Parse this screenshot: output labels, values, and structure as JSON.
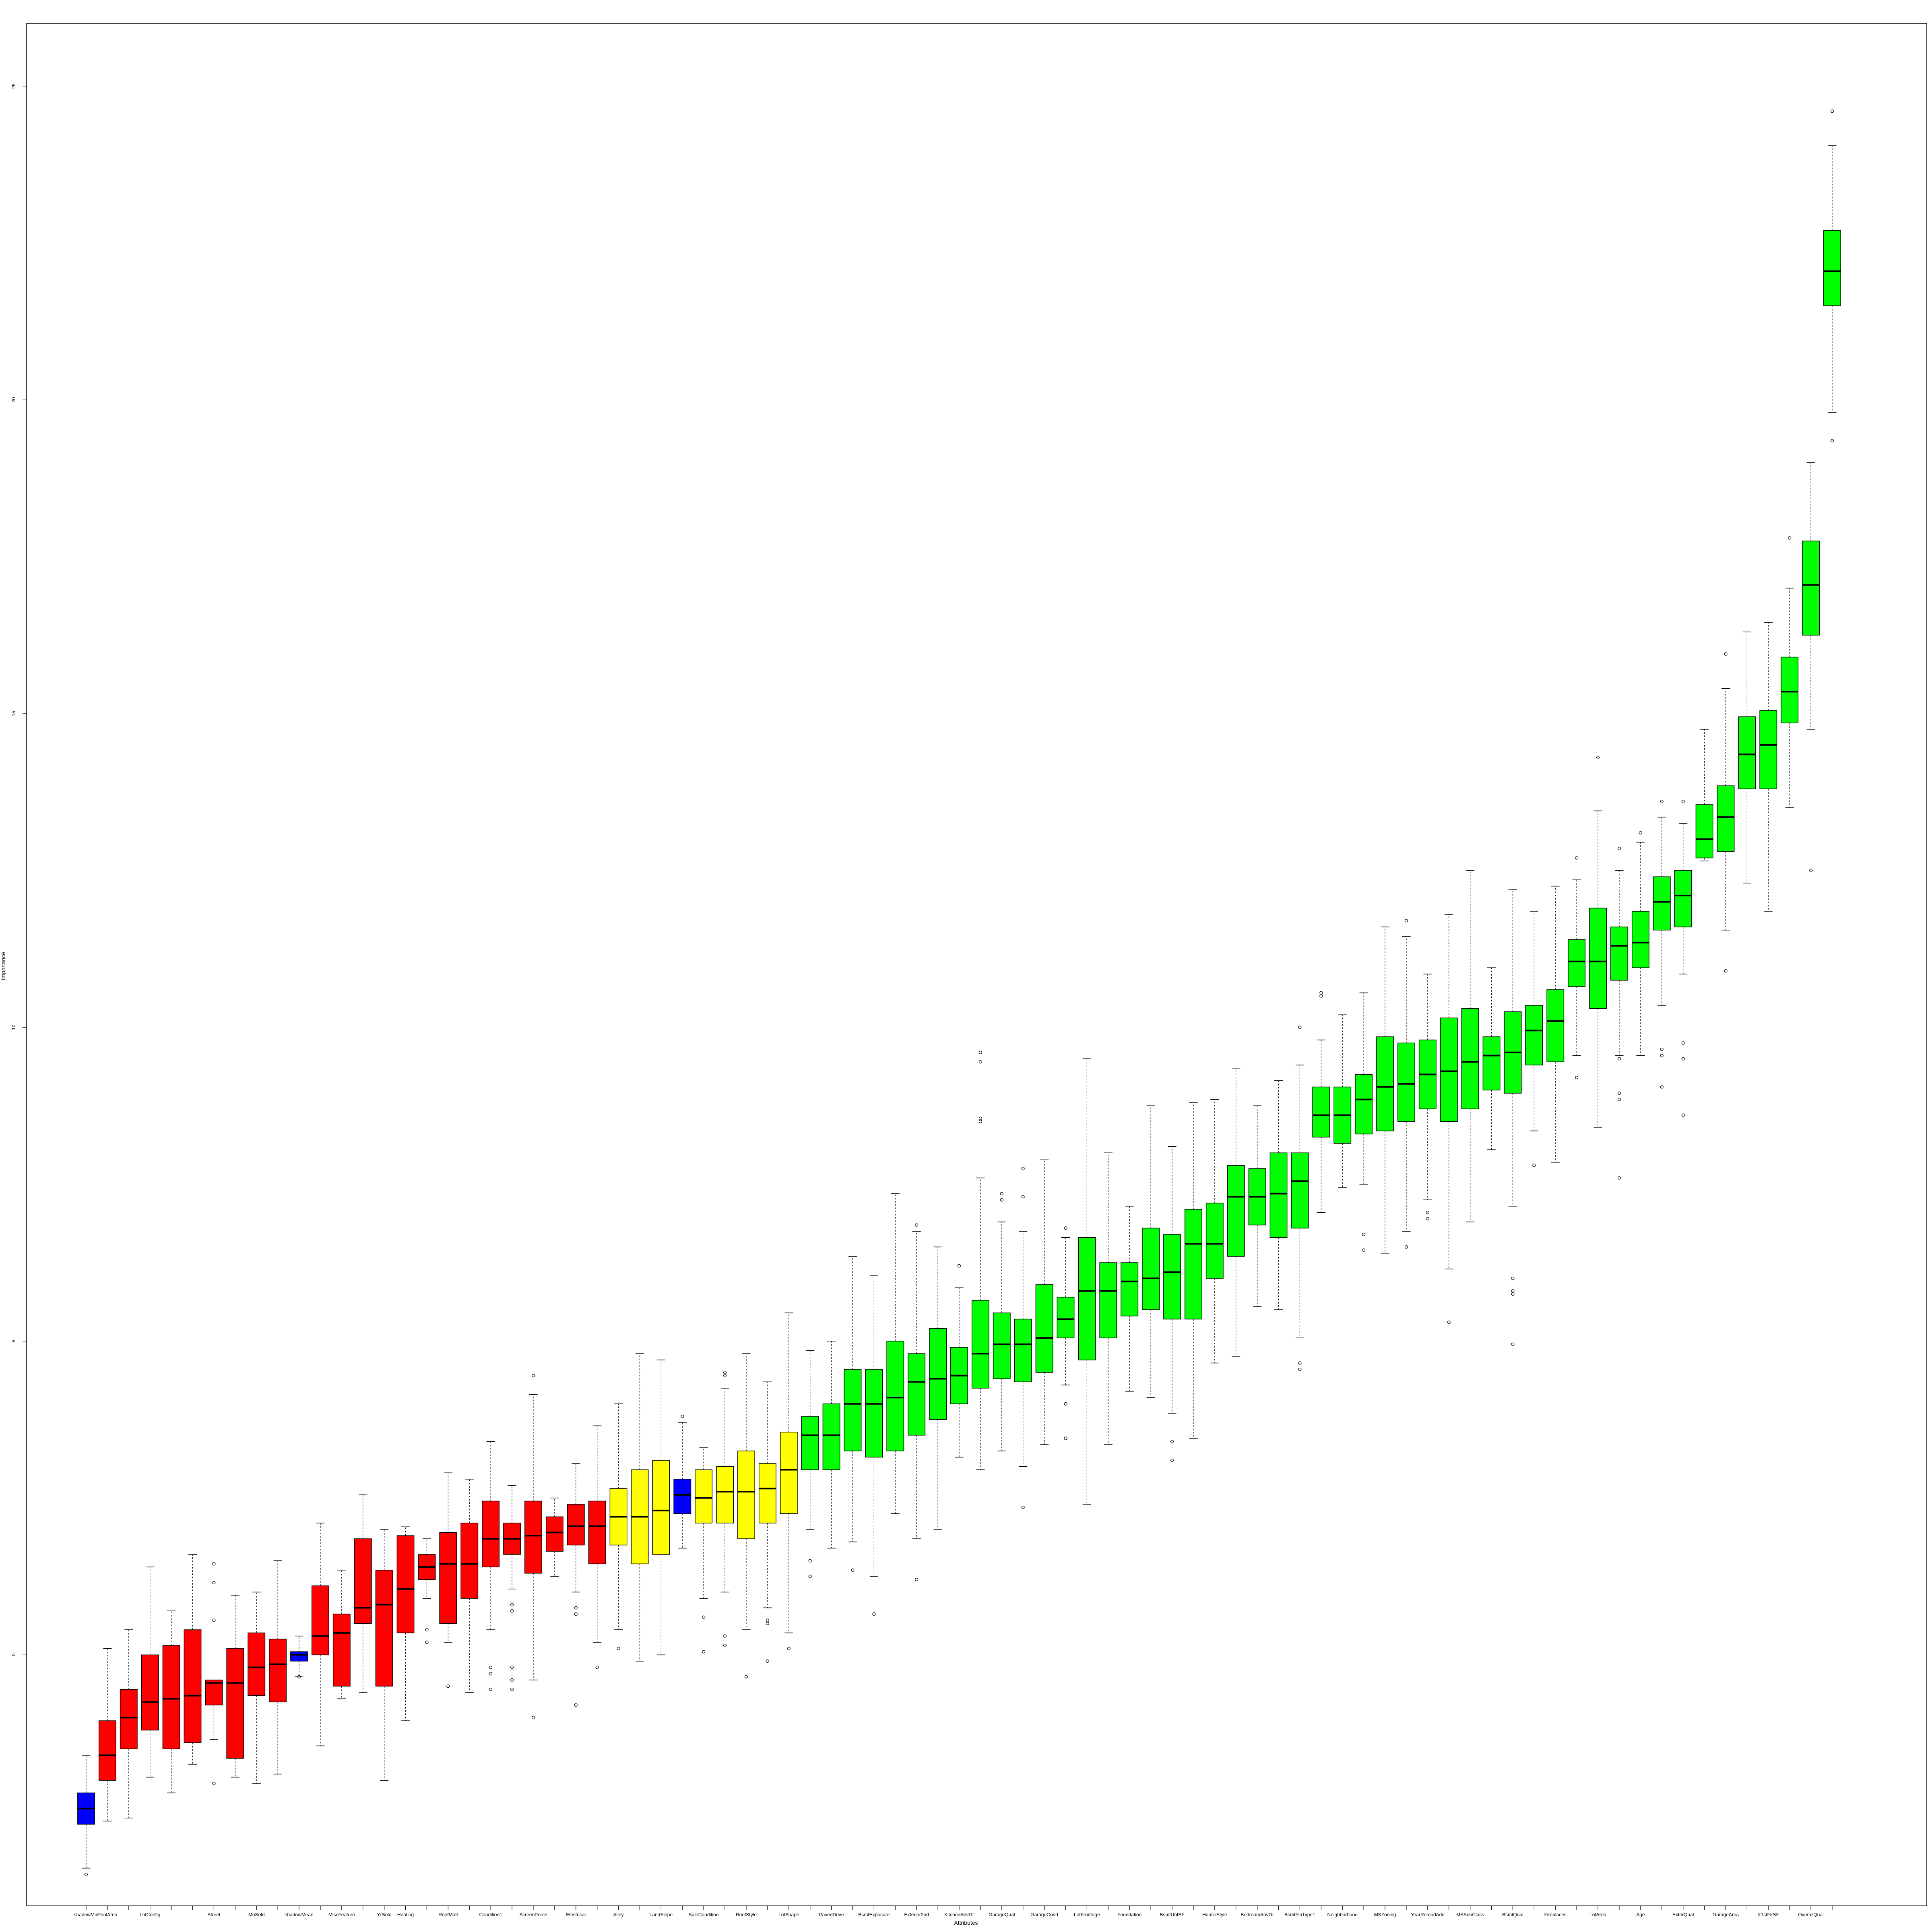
{
  "chart_data": {
    "type": "box",
    "xlabel": "Attributes",
    "ylabel": "Importance",
    "ylim": [
      -4,
      26
    ],
    "yticks": [
      0,
      5,
      10,
      15,
      20,
      25
    ],
    "grid": false,
    "legend": "none",
    "colors": {
      "rejected": "#ff0000",
      "tentative": "#ffff00",
      "confirmed": "#00ff00",
      "shadow": "#0000ff"
    },
    "boxes": [
      {
        "name": "shadowMin",
        "status": "shadow",
        "min": -3.4,
        "q1": -2.7,
        "med": -2.45,
        "q3": -2.2,
        "max": -1.6,
        "out": [
          -3.5
        ]
      },
      {
        "name": "PoolArea",
        "status": "rejected",
        "min": -2.65,
        "q1": -2.0,
        "med": -1.6,
        "q3": -1.05,
        "max": 0.1,
        "out": []
      },
      {
        "name": "",
        "status": "rejected",
        "min": -2.6,
        "q1": -1.5,
        "med": -1.0,
        "q3": -0.55,
        "max": 0.4,
        "out": []
      },
      {
        "name": "LotConfig",
        "status": "rejected",
        "min": -1.95,
        "q1": -1.2,
        "med": -0.75,
        "q3": 0.0,
        "max": 1.4,
        "out": []
      },
      {
        "name": "",
        "status": "rejected",
        "min": -2.2,
        "q1": -1.5,
        "med": -0.7,
        "q3": 0.15,
        "max": 0.7,
        "out": []
      },
      {
        "name": "",
        "status": "rejected",
        "min": -1.75,
        "q1": -1.4,
        "med": -0.65,
        "q3": 0.4,
        "max": 1.6,
        "out": []
      },
      {
        "name": "Street",
        "status": "rejected",
        "min": -1.35,
        "q1": -0.8,
        "med": -0.45,
        "q3": -0.4,
        "max": -0.4,
        "out": [
          -2.05,
          1.45,
          1.15,
          0.55
        ]
      },
      {
        "name": "",
        "status": "rejected",
        "min": -1.95,
        "q1": -1.65,
        "med": -0.45,
        "q3": 0.1,
        "max": 0.95,
        "out": []
      },
      {
        "name": "MoSold",
        "status": "rejected",
        "min": -2.05,
        "q1": -0.65,
        "med": -0.2,
        "q3": 0.35,
        "max": 1.0,
        "out": []
      },
      {
        "name": "",
        "status": "rejected",
        "min": -1.9,
        "q1": -0.75,
        "med": -0.15,
        "q3": 0.25,
        "max": 1.5,
        "out": []
      },
      {
        "name": "shadowMean",
        "status": "shadow",
        "min": -0.35,
        "q1": -0.1,
        "med": 0.0,
        "q3": 0.05,
        "max": 0.3,
        "out": [
          -0.35
        ]
      },
      {
        "name": "",
        "status": "rejected",
        "min": -1.45,
        "q1": 0.0,
        "med": 0.3,
        "q3": 1.1,
        "max": 2.1,
        "out": []
      },
      {
        "name": "MiscFeature",
        "status": "rejected",
        "min": -0.7,
        "q1": -0.5,
        "med": 0.35,
        "q3": 0.65,
        "max": 1.35,
        "out": []
      },
      {
        "name": "",
        "status": "rejected",
        "min": -0.6,
        "q1": 0.5,
        "med": 0.75,
        "q3": 1.85,
        "max": 2.55,
        "out": []
      },
      {
        "name": "YrSold",
        "status": "rejected",
        "min": -2.0,
        "q1": -0.5,
        "med": 0.8,
        "q3": 1.35,
        "max": 2.0,
        "out": []
      },
      {
        "name": "Heating",
        "status": "rejected",
        "min": -1.05,
        "q1": 0.35,
        "med": 1.05,
        "q3": 1.9,
        "max": 2.05,
        "out": []
      },
      {
        "name": "",
        "status": "rejected",
        "min": 0.9,
        "q1": 1.2,
        "med": 1.4,
        "q3": 1.6,
        "max": 1.85,
        "out": [
          0.4,
          0.2
        ]
      },
      {
        "name": "RoofMatl",
        "status": "rejected",
        "min": 0.2,
        "q1": 0.5,
        "med": 1.45,
        "q3": 1.95,
        "max": 2.9,
        "out": [
          -0.5
        ]
      },
      {
        "name": "",
        "status": "rejected",
        "min": -0.6,
        "q1": 0.9,
        "med": 1.45,
        "q3": 2.1,
        "max": 2.8,
        "out": []
      },
      {
        "name": "Condition1",
        "status": "rejected",
        "min": 0.4,
        "q1": 1.4,
        "med": 1.85,
        "q3": 2.45,
        "max": 3.4,
        "out": [
          -0.55,
          -0.3,
          -0.2
        ]
      },
      {
        "name": "",
        "status": "rejected",
        "min": 1.05,
        "q1": 1.6,
        "med": 1.85,
        "q3": 2.1,
        "max": 2.7,
        "out": [
          0.7,
          0.8,
          -0.2,
          -0.55,
          -0.4
        ]
      },
      {
        "name": "ScreenPorch",
        "status": "rejected",
        "min": -0.4,
        "q1": 1.3,
        "med": 1.9,
        "q3": 2.45,
        "max": 4.15,
        "out": [
          -1.0,
          4.45
        ]
      },
      {
        "name": "",
        "status": "rejected",
        "min": 1.25,
        "q1": 1.65,
        "med": 1.95,
        "q3": 2.2,
        "max": 2.5,
        "out": []
      },
      {
        "name": "Electrical",
        "status": "rejected",
        "min": 1.0,
        "q1": 1.75,
        "med": 2.05,
        "q3": 2.4,
        "max": 3.05,
        "out": [
          0.75,
          0.65,
          -0.8
        ]
      },
      {
        "name": "",
        "status": "rejected",
        "min": 0.2,
        "q1": 1.45,
        "med": 2.05,
        "q3": 2.45,
        "max": 3.65,
        "out": [
          -0.2
        ]
      },
      {
        "name": "Alley",
        "status": "tentative",
        "min": 0.4,
        "q1": 1.75,
        "med": 2.2,
        "q3": 2.65,
        "max": 4.0,
        "out": [
          0.1
        ]
      },
      {
        "name": "",
        "status": "tentative",
        "min": -0.1,
        "q1": 1.45,
        "med": 2.2,
        "q3": 2.95,
        "max": 4.8,
        "out": []
      },
      {
        "name": "LandSlope",
        "status": "tentative",
        "min": 0.0,
        "q1": 1.6,
        "med": 2.3,
        "q3": 3.1,
        "max": 4.7,
        "out": []
      },
      {
        "name": "",
        "status": "shadow",
        "min": 1.7,
        "q1": 2.25,
        "med": 2.55,
        "q3": 2.8,
        "max": 3.7,
        "out": [
          3.8
        ]
      },
      {
        "name": "SaleCondition",
        "status": "tentative",
        "min": 0.9,
        "q1": 2.1,
        "med": 2.5,
        "q3": 2.95,
        "max": 3.3,
        "out": [
          0.6,
          0.05
        ]
      },
      {
        "name": "",
        "status": "tentative",
        "min": 1.0,
        "q1": 2.1,
        "med": 2.6,
        "q3": 3.0,
        "max": 4.25,
        "out": [
          4.45,
          4.5,
          0.15,
          0.3
        ]
      },
      {
        "name": "RoofStyle",
        "status": "tentative",
        "min": 0.4,
        "q1": 1.85,
        "med": 2.6,
        "q3": 3.25,
        "max": 4.8,
        "out": [
          -0.35
        ]
      },
      {
        "name": "",
        "status": "tentative",
        "min": 0.75,
        "q1": 2.1,
        "med": 2.65,
        "q3": 3.05,
        "max": 4.35,
        "out": [
          0.5,
          0.55,
          -0.1
        ]
      },
      {
        "name": "LotShape",
        "status": "tentative",
        "min": 0.35,
        "q1": 2.25,
        "med": 2.95,
        "q3": 3.55,
        "max": 5.45,
        "out": [
          0.1
        ]
      },
      {
        "name": "",
        "status": "confirmed",
        "min": 2.0,
        "q1": 2.95,
        "med": 3.5,
        "q3": 3.8,
        "max": 4.85,
        "out": [
          1.5,
          1.25
        ]
      },
      {
        "name": "PavedDrive",
        "status": "confirmed",
        "min": 1.7,
        "q1": 2.95,
        "med": 3.5,
        "q3": 4.0,
        "max": 5.0,
        "out": []
      },
      {
        "name": "",
        "status": "confirmed",
        "min": 1.8,
        "q1": 3.25,
        "med": 4.0,
        "q3": 4.55,
        "max": 6.35,
        "out": [
          1.35
        ]
      },
      {
        "name": "BsmtExposure",
        "status": "confirmed",
        "min": 1.25,
        "q1": 3.15,
        "med": 4.0,
        "q3": 4.55,
        "max": 6.05,
        "out": [
          0.65
        ]
      },
      {
        "name": "",
        "status": "confirmed",
        "min": 2.25,
        "q1": 3.25,
        "med": 4.1,
        "q3": 5.0,
        "max": 7.35,
        "out": []
      },
      {
        "name": "Exterior2nd",
        "status": "confirmed",
        "min": 1.85,
        "q1": 3.5,
        "med": 4.35,
        "q3": 4.8,
        "max": 6.75,
        "out": [
          6.85,
          1.2
        ]
      },
      {
        "name": "",
        "status": "confirmed",
        "min": 2.0,
        "q1": 3.75,
        "med": 4.4,
        "q3": 5.2,
        "max": 6.5,
        "out": []
      },
      {
        "name": "KitchenAbvGr",
        "status": "confirmed",
        "min": 3.15,
        "q1": 4.0,
        "med": 4.45,
        "q3": 4.9,
        "max": 5.85,
        "out": [
          6.2
        ]
      },
      {
        "name": "",
        "status": "confirmed",
        "min": 2.95,
        "q1": 4.25,
        "med": 4.8,
        "q3": 5.65,
        "max": 7.6,
        "out": [
          8.5,
          8.55,
          9.45,
          9.6
        ]
      },
      {
        "name": "GarageQual",
        "status": "confirmed",
        "min": 3.25,
        "q1": 4.4,
        "med": 4.95,
        "q3": 5.45,
        "max": 6.9,
        "out": [
          7.25,
          7.35
        ]
      },
      {
        "name": "",
        "status": "confirmed",
        "min": 3.0,
        "q1": 4.35,
        "med": 4.95,
        "q3": 5.35,
        "max": 6.75,
        "out": [
          2.35,
          7.3,
          7.75
        ]
      },
      {
        "name": "GarageCond",
        "status": "confirmed",
        "min": 3.35,
        "q1": 4.5,
        "med": 5.05,
        "q3": 5.9,
        "max": 7.9,
        "out": []
      },
      {
        "name": "",
        "status": "confirmed",
        "min": 4.3,
        "q1": 5.05,
        "med": 5.35,
        "q3": 5.7,
        "max": 6.65,
        "out": [
          6.8,
          4.0,
          3.45
        ]
      },
      {
        "name": "LotFrontage",
        "status": "confirmed",
        "min": 2.4,
        "q1": 4.7,
        "med": 5.8,
        "q3": 6.65,
        "max": 9.5,
        "out": []
      },
      {
        "name": "",
        "status": "confirmed",
        "min": 3.35,
        "q1": 5.05,
        "med": 5.8,
        "q3": 6.25,
        "max": 8.0,
        "out": []
      },
      {
        "name": "Foundation",
        "status": "confirmed",
        "min": 4.2,
        "q1": 5.4,
        "med": 5.95,
        "q3": 6.25,
        "max": 7.15,
        "out": []
      },
      {
        "name": "",
        "status": "confirmed",
        "min": 4.1,
        "q1": 5.5,
        "med": 6.0,
        "q3": 6.8,
        "max": 8.75,
        "out": []
      },
      {
        "name": "BsmtUnfSF",
        "status": "confirmed",
        "min": 3.85,
        "q1": 5.35,
        "med": 6.1,
        "q3": 6.7,
        "max": 8.1,
        "out": [
          3.4,
          3.1
        ]
      },
      {
        "name": "",
        "status": "confirmed",
        "min": 3.45,
        "q1": 5.35,
        "med": 6.55,
        "q3": 7.1,
        "max": 8.8,
        "out": []
      },
      {
        "name": "HouseStyle",
        "status": "confirmed",
        "min": 4.65,
        "q1": 6.0,
        "med": 6.55,
        "q3": 7.2,
        "max": 8.85,
        "out": []
      },
      {
        "name": "",
        "status": "confirmed",
        "min": 4.75,
        "q1": 6.35,
        "med": 7.3,
        "q3": 7.8,
        "max": 9.35,
        "out": []
      },
      {
        "name": "BedroomAbvGr",
        "status": "confirmed",
        "min": 5.55,
        "q1": 6.85,
        "med": 7.3,
        "q3": 7.75,
        "max": 8.75,
        "out": []
      },
      {
        "name": "",
        "status": "confirmed",
        "min": 5.5,
        "q1": 6.65,
        "med": 7.35,
        "q3": 8.0,
        "max": 9.15,
        "out": []
      },
      {
        "name": "BsmtFinType1",
        "status": "confirmed",
        "min": 5.05,
        "q1": 6.8,
        "med": 7.55,
        "q3": 8.0,
        "max": 9.4,
        "out": [
          4.65,
          4.55,
          10.0
        ]
      },
      {
        "name": "",
        "status": "confirmed",
        "min": 7.05,
        "q1": 8.25,
        "med": 8.6,
        "q3": 9.05,
        "max": 9.8,
        "out": [
          10.5,
          10.55
        ]
      },
      {
        "name": "Neighborhood",
        "status": "confirmed",
        "min": 7.45,
        "q1": 8.15,
        "med": 8.6,
        "q3": 9.05,
        "max": 10.2,
        "out": []
      },
      {
        "name": "",
        "status": "confirmed",
        "min": 7.5,
        "q1": 8.3,
        "med": 8.85,
        "q3": 9.25,
        "max": 10.55,
        "out": [
          6.7,
          6.45
        ]
      },
      {
        "name": "MSZoning",
        "status": "confirmed",
        "min": 6.4,
        "q1": 8.35,
        "med": 9.05,
        "q3": 9.85,
        "max": 11.6,
        "out": []
      },
      {
        "name": "",
        "status": "confirmed",
        "min": 6.75,
        "q1": 8.5,
        "med": 9.1,
        "q3": 9.75,
        "max": 11.45,
        "out": [
          11.7,
          6.5
        ]
      },
      {
        "name": "YearRemodAdd",
        "status": "confirmed",
        "min": 7.25,
        "q1": 8.7,
        "med": 9.25,
        "q3": 9.8,
        "max": 10.85,
        "out": [
          7.05,
          6.95
        ]
      },
      {
        "name": "",
        "status": "confirmed",
        "min": 6.15,
        "q1": 8.5,
        "med": 9.3,
        "q3": 10.15,
        "max": 11.8,
        "out": [
          5.3
        ]
      },
      {
        "name": "MSSubClass",
        "status": "confirmed",
        "min": 6.9,
        "q1": 8.7,
        "med": 9.45,
        "q3": 10.3,
        "max": 12.5,
        "out": []
      },
      {
        "name": "",
        "status": "confirmed",
        "min": 8.05,
        "q1": 9.0,
        "med": 9.55,
        "q3": 9.85,
        "max": 10.95,
        "out": []
      },
      {
        "name": "BsmtQual",
        "status": "confirmed",
        "min": 7.15,
        "q1": 8.95,
        "med": 9.6,
        "q3": 10.25,
        "max": 12.2,
        "out": [
          6.0,
          5.8,
          5.75,
          4.95
        ]
      },
      {
        "name": "",
        "status": "confirmed",
        "min": 8.35,
        "q1": 9.4,
        "med": 9.95,
        "q3": 10.35,
        "max": 11.85,
        "out": [
          7.8
        ]
      },
      {
        "name": "Fireplaces",
        "status": "confirmed",
        "min": 7.85,
        "q1": 9.45,
        "med": 10.1,
        "q3": 10.6,
        "max": 12.25,
        "out": []
      },
      {
        "name": "",
        "status": "confirmed",
        "min": 9.55,
        "q1": 10.65,
        "med": 11.05,
        "q3": 11.4,
        "max": 12.35,
        "out": [
          9.2,
          12.7
        ]
      },
      {
        "name": "LotArea",
        "status": "confirmed",
        "min": 8.4,
        "q1": 10.3,
        "med": 11.05,
        "q3": 11.9,
        "max": 13.45,
        "out": [
          14.3
        ]
      },
      {
        "name": "",
        "status": "confirmed",
        "min": 9.55,
        "q1": 10.75,
        "med": 11.3,
        "q3": 11.6,
        "max": 12.5,
        "out": [
          12.85,
          9.5,
          8.95,
          8.85,
          7.6
        ]
      },
      {
        "name": "Age",
        "status": "confirmed",
        "min": 9.55,
        "q1": 10.95,
        "med": 11.35,
        "q3": 11.85,
        "max": 12.95,
        "out": [
          13.1
        ]
      },
      {
        "name": "",
        "status": "confirmed",
        "min": 10.35,
        "q1": 11.55,
        "med": 12.0,
        "q3": 12.4,
        "max": 13.35,
        "out": [
          13.6,
          9.65,
          9.55,
          9.05
        ]
      },
      {
        "name": "ExterQual",
        "status": "confirmed",
        "min": 10.85,
        "q1": 11.6,
        "med": 12.1,
        "q3": 12.5,
        "max": 13.25,
        "out": [
          13.6,
          9.75,
          9.5,
          8.6
        ]
      },
      {
        "name": "",
        "status": "confirmed",
        "min": 12.65,
        "q1": 12.7,
        "med": 13.0,
        "q3": 13.55,
        "max": 14.75,
        "out": []
      },
      {
        "name": "GarageArea",
        "status": "confirmed",
        "min": 11.55,
        "q1": 12.8,
        "med": 13.35,
        "q3": 13.85,
        "max": 15.4,
        "out": [
          15.95,
          10.9
        ]
      },
      {
        "name": "",
        "status": "confirmed",
        "min": 12.3,
        "q1": 13.8,
        "med": 14.35,
        "q3": 14.95,
        "max": 16.3,
        "out": []
      },
      {
        "name": "X1stFlrSF",
        "status": "confirmed",
        "min": 11.85,
        "q1": 13.8,
        "med": 14.5,
        "q3": 15.05,
        "max": 16.45,
        "out": []
      },
      {
        "name": "",
        "status": "confirmed",
        "min": 13.5,
        "q1": 14.85,
        "med": 15.35,
        "q3": 15.9,
        "max": 17.0,
        "out": [
          17.8
        ]
      },
      {
        "name": "OverallQual",
        "status": "confirmed",
        "min": 14.75,
        "q1": 16.25,
        "med": 17.05,
        "q3": 17.75,
        "max": 19.0,
        "out": [
          12.5
        ]
      },
      {
        "name": "",
        "status": "confirmed",
        "min": 19.8,
        "q1": 21.5,
        "med": 22.05,
        "q3": 22.7,
        "max": 24.05,
        "out": [
          24.6,
          19.35
        ]
      }
    ]
  }
}
